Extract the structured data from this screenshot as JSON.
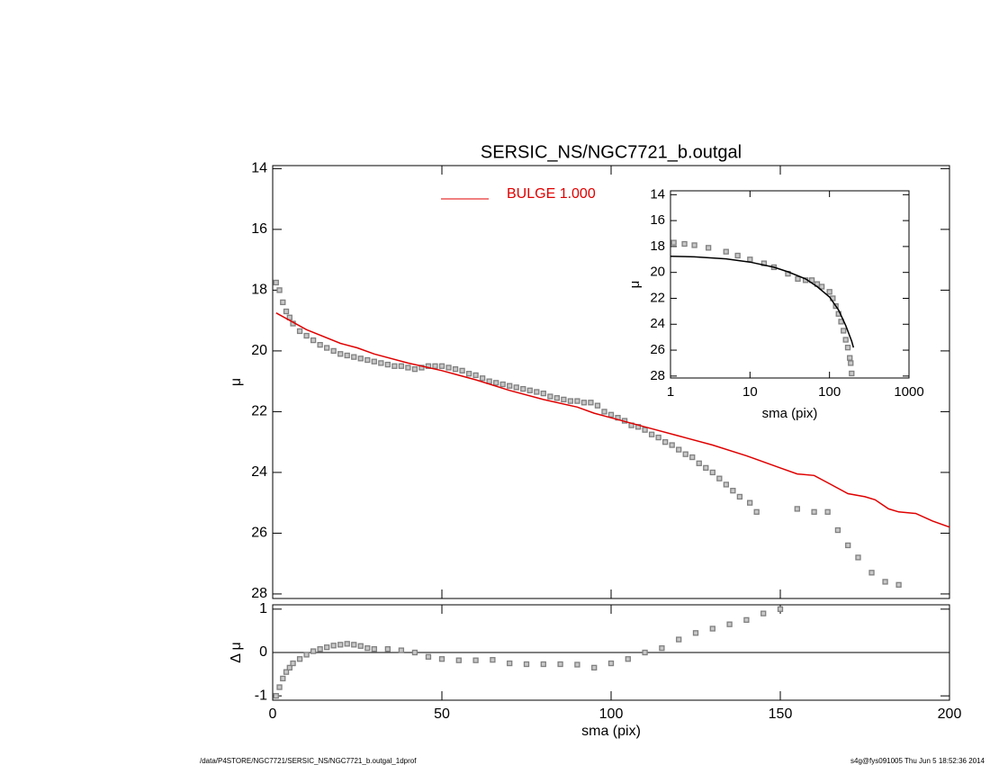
{
  "chart_data": [
    {
      "type": "line",
      "title": "SERSIC_NS/NGC7721_b.outgal",
      "ylabel": "μ",
      "xlim": [
        0,
        200
      ],
      "xticks": [
        0,
        50,
        100,
        150,
        200
      ],
      "xtick_labels": false,
      "ylim": [
        28.15,
        13.9
      ],
      "yticks": [
        14,
        16,
        18,
        20,
        22,
        24,
        26,
        28
      ],
      "series": [
        {
          "style": "markers",
          "color": "#808080",
          "x": [
            1,
            2,
            3,
            4,
            5,
            6,
            8,
            10,
            12,
            14,
            16,
            18,
            20,
            22,
            24,
            26,
            28,
            30,
            32,
            34,
            36,
            38,
            40,
            42,
            44,
            46,
            48,
            50,
            52,
            54,
            56,
            58,
            60,
            62,
            64,
            66,
            68,
            70,
            72,
            74,
            76,
            78,
            80,
            82,
            84,
            86,
            88,
            90,
            92,
            94,
            96,
            98,
            100,
            102,
            104,
            106,
            108,
            110,
            112,
            114,
            116,
            118,
            120,
            122,
            124,
            126,
            128,
            130,
            132,
            134,
            136,
            138,
            141,
            143,
            155,
            160,
            164,
            167,
            170,
            173,
            177,
            181,
            185
          ],
          "values": [
            17.75,
            18.0,
            18.4,
            18.7,
            18.9,
            19.1,
            19.35,
            19.5,
            19.65,
            19.8,
            19.9,
            20.0,
            20.1,
            20.15,
            20.2,
            20.25,
            20.3,
            20.35,
            20.4,
            20.45,
            20.5,
            20.5,
            20.55,
            20.6,
            20.55,
            20.5,
            20.5,
            20.5,
            20.55,
            20.6,
            20.65,
            20.75,
            20.8,
            20.9,
            21.0,
            21.05,
            21.1,
            21.15,
            21.2,
            21.25,
            21.3,
            21.35,
            21.4,
            21.5,
            21.55,
            21.6,
            21.65,
            21.65,
            21.7,
            21.7,
            21.8,
            22.0,
            22.1,
            22.2,
            22.3,
            22.45,
            22.5,
            22.6,
            22.75,
            22.85,
            23.0,
            23.1,
            23.25,
            23.4,
            23.5,
            23.7,
            23.85,
            24.0,
            24.2,
            24.4,
            24.6,
            24.8,
            25.0,
            25.3,
            25.2,
            25.3,
            25.3,
            25.9,
            26.4,
            26.8,
            27.3,
            27.6,
            27.7
          ]
        },
        {
          "style": "line",
          "name": "BULGE  1.000",
          "color": "#e00000",
          "x": [
            1,
            10,
            20,
            25,
            30,
            40,
            50,
            60,
            70,
            80,
            90,
            95,
            100,
            110,
            120,
            130,
            140,
            150,
            155,
            160,
            165,
            170,
            175,
            178,
            182,
            185,
            190,
            195,
            200
          ],
          "values": [
            18.75,
            19.3,
            19.75,
            19.9,
            20.1,
            20.4,
            20.65,
            20.95,
            21.3,
            21.6,
            21.85,
            22.05,
            22.2,
            22.5,
            22.8,
            23.1,
            23.45,
            23.85,
            24.05,
            24.1,
            24.4,
            24.7,
            24.8,
            24.9,
            25.2,
            25.3,
            25.35,
            25.6,
            25.8
          ]
        }
      ]
    },
    {
      "type": "line",
      "xlabel": "sma (pix)",
      "ylabel": "Δ μ",
      "xlim": [
        0,
        200
      ],
      "xticks": [
        0,
        50,
        100,
        150,
        200
      ],
      "ylim": [
        -1.1,
        1.1
      ],
      "yticks": [
        -1,
        0,
        1
      ],
      "series": [
        {
          "style": "markers",
          "color": "#808080",
          "x": [
            1,
            2,
            3,
            4,
            5,
            6,
            8,
            10,
            12,
            14,
            16,
            18,
            20,
            22,
            24,
            26,
            28,
            30,
            34,
            38,
            42,
            46,
            50,
            55,
            60,
            65,
            70,
            75,
            80,
            85,
            90,
            95,
            100,
            105,
            110,
            115,
            120,
            125,
            130,
            135,
            140,
            145,
            150
          ],
          "values": [
            -1.0,
            -0.8,
            -0.6,
            -0.45,
            -0.35,
            -0.25,
            -0.15,
            -0.05,
            0.03,
            0.08,
            0.12,
            0.16,
            0.18,
            0.2,
            0.18,
            0.15,
            0.1,
            0.08,
            0.08,
            0.05,
            0.0,
            -0.1,
            -0.15,
            -0.18,
            -0.18,
            -0.17,
            -0.25,
            -0.27,
            -0.27,
            -0.27,
            -0.28,
            -0.35,
            -0.25,
            -0.15,
            0.0,
            0.1,
            0.3,
            0.45,
            0.55,
            0.65,
            0.75,
            0.9,
            1.0
          ]
        }
      ]
    },
    {
      "type": "line",
      "xlabel": "sma (pix)",
      "ylabel": "μ",
      "xscale": "log",
      "xlim": [
        1,
        1000
      ],
      "xticks": [
        1,
        10,
        100,
        1000
      ],
      "ylim": [
        28.15,
        13.7
      ],
      "yticks": [
        14,
        16,
        18,
        20,
        22,
        24,
        26,
        28
      ],
      "series": [
        {
          "style": "markers",
          "color": "#808080",
          "x": [
            1.1,
            1.5,
            2,
            3,
            5,
            7,
            10,
            15,
            20,
            30,
            40,
            50,
            60,
            70,
            80,
            100,
            110,
            120,
            130,
            140,
            150,
            160,
            170,
            180,
            185,
            190
          ],
          "values": [
            17.7,
            17.8,
            17.9,
            18.1,
            18.4,
            18.7,
            19.0,
            19.3,
            19.6,
            20.1,
            20.5,
            20.6,
            20.6,
            20.9,
            21.1,
            21.5,
            22.0,
            22.6,
            23.2,
            23.8,
            24.5,
            25.2,
            25.8,
            26.6,
            27.0,
            27.8
          ]
        },
        {
          "style": "line",
          "color": "#000000",
          "x": [
            1,
            2,
            5,
            10,
            20,
            30,
            50,
            70,
            100,
            130,
            160,
            190,
            200
          ],
          "values": [
            18.75,
            18.8,
            18.95,
            19.2,
            19.6,
            19.95,
            20.5,
            21.1,
            21.9,
            22.9,
            24.1,
            25.3,
            25.8
          ]
        }
      ]
    }
  ],
  "footer": {
    "left": "/data/P4STORE/NGC7721/SERSIC_NS/NGC7721_b.outgal_1dprof",
    "right": "s4g@fys091005  Thu Jun  5 18:52:36 2014"
  }
}
